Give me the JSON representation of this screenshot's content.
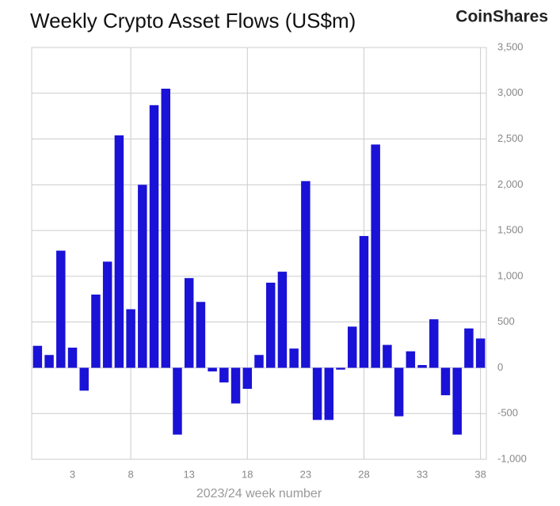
{
  "chart_data": {
    "type": "bar",
    "title": "Weekly Crypto Asset Flows (US$m)",
    "brand": "CoinShares",
    "xlabel": "2023/24 week number",
    "categories": [
      null,
      null,
      null,
      "3",
      null,
      null,
      null,
      null,
      "8",
      null,
      null,
      null,
      null,
      "13",
      null,
      null,
      null,
      null,
      "18",
      null,
      null,
      null,
      null,
      "23",
      null,
      null,
      null,
      null,
      "28",
      null,
      null,
      null,
      null,
      "33",
      null,
      null,
      null,
      null,
      "38"
    ],
    "values": [
      240,
      140,
      1280,
      220,
      -250,
      800,
      1160,
      2540,
      640,
      2000,
      2870,
      3050,
      -730,
      980,
      720,
      -40,
      -160,
      -390,
      -230,
      140,
      930,
      1050,
      210,
      2040,
      -570,
      -570,
      -20,
      450,
      1440,
      2440,
      250,
      -530,
      180,
      30,
      530,
      -300,
      -730,
      430,
      320
    ],
    "color": "#1a12d6",
    "ylim": [
      -1000,
      3500
    ],
    "yticks": [
      {
        "value": -1000,
        "label": "-1,000"
      },
      -500,
      0,
      500,
      {
        "value": 1000,
        "label": "1,000"
      },
      {
        "value": 1500,
        "label": "1,500"
      },
      {
        "value": 2000,
        "label": "2,000"
      },
      {
        "value": 2500,
        "label": "2,500"
      },
      {
        "value": 3000,
        "label": "3,000"
      },
      {
        "value": 3500,
        "label": "3,500"
      }
    ],
    "grid": true
  }
}
